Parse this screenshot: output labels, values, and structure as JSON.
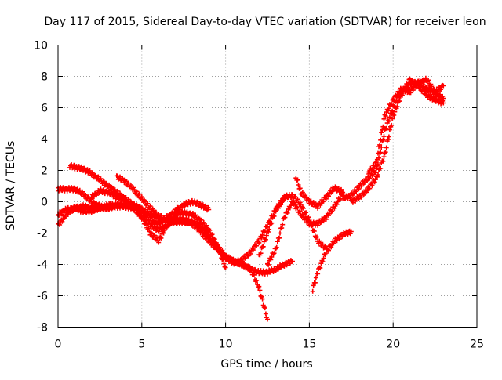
{
  "chart_data": {
    "type": "scatter",
    "title": "Day 117 of 2015, Sidereal Day-to-day VTEC variation (SDTVAR) for receiver leon",
    "xlabel": "GPS time / hours",
    "ylabel": "SDTVAR / TECUs",
    "xlim": [
      0,
      25
    ],
    "ylim": [
      -8,
      10
    ],
    "xticks": [
      "0",
      "5",
      "10",
      "15",
      "20",
      "25"
    ],
    "yticks": [
      "-8",
      "-6",
      "-4",
      "-2",
      "0",
      "2",
      "4",
      "6",
      "8",
      "10"
    ],
    "grid": true,
    "marker": "+",
    "color": "#ff0000",
    "series": [
      {
        "x": [
          0.0,
          0.5,
          1.0,
          1.5,
          2.0,
          2.5,
          3.0,
          3.5,
          4.0,
          4.5,
          5.0,
          5.5,
          6.0,
          6.5,
          7.0,
          7.5,
          8.0,
          8.5,
          9.0,
          9.5,
          10.0,
          10.5,
          11.0,
          11.5,
          12.0,
          12.5
        ],
        "y": [
          -1.5,
          -0.8,
          -0.4,
          -0.3,
          -0.4,
          -0.4,
          -0.4,
          -0.3,
          -0.3,
          -0.4,
          -0.9,
          -1.5,
          -1.8,
          -1.5,
          -1.2,
          -1.2,
          -1.4,
          -1.9,
          -2.5,
          -3.0,
          -3.5,
          -3.8,
          -4.0,
          -4.3,
          -5.5,
          -7.5
        ]
      },
      {
        "x": [
          0.0,
          0.5,
          1.0,
          1.5,
          2.0,
          2.5,
          3.0,
          3.5,
          4.0,
          4.5,
          5.0,
          5.5,
          6.0,
          6.5,
          7.0,
          7.5,
          8.0,
          8.5,
          9.0,
          9.5,
          10.0
        ],
        "y": [
          0.8,
          0.8,
          0.8,
          0.5,
          0.0,
          -0.3,
          -0.4,
          -0.2,
          -0.2,
          -0.4,
          -1.0,
          -2.0,
          -2.5,
          -1.5,
          -0.8,
          -0.7,
          -0.8,
          -1.2,
          -1.8,
          -2.8,
          -4.2
        ]
      },
      {
        "x": [
          0.0,
          0.5,
          1.0,
          1.5,
          2.0,
          2.5,
          3.0,
          3.5,
          4.0,
          4.5,
          5.0
        ],
        "y": [
          -0.8,
          -0.5,
          -0.4,
          -0.6,
          -0.6,
          -0.4,
          -0.2,
          -0.2,
          -0.2,
          -0.3,
          -0.4
        ]
      },
      {
        "x": [
          0.7,
          1.0,
          1.5,
          2.0,
          2.5,
          3.0,
          3.5,
          4.0,
          4.5,
          5.0,
          5.5,
          6.0,
          6.5,
          7.0,
          7.5,
          8.0,
          8.5,
          9.0,
          9.5,
          10.0,
          10.5,
          11.0,
          11.5,
          12.0,
          12.5,
          13.0,
          13.5,
          14.0
        ],
        "y": [
          2.3,
          2.2,
          2.1,
          1.8,
          1.4,
          1.0,
          0.6,
          0.2,
          -0.2,
          -0.5,
          -0.8,
          -1.0,
          -1.2,
          -1.3,
          -1.3,
          -1.3,
          -1.5,
          -2.0,
          -2.8,
          -3.5,
          -3.8,
          -4.0,
          -4.3,
          -4.5,
          -4.5,
          -4.3,
          -4.0,
          -3.8
        ]
      },
      {
        "x": [
          2.0,
          2.5,
          3.0,
          3.5,
          4.0,
          4.5,
          5.0,
          5.5,
          6.0,
          6.5,
          7.0,
          7.5,
          8.0,
          8.5,
          9.0
        ],
        "y": [
          0.3,
          0.7,
          0.6,
          0.3,
          0.0,
          -0.2,
          -0.6,
          -1.2,
          -1.4,
          -1.0,
          -0.6,
          -0.2,
          0.0,
          -0.2,
          -0.5
        ]
      },
      {
        "x": [
          3.5,
          4.0,
          4.5,
          5.0,
          5.5,
          6.0,
          6.5,
          7.0,
          7.5,
          8.0,
          8.5,
          9.0,
          9.5,
          10.0,
          10.5,
          11.0,
          11.5,
          12.0,
          12.5,
          13.0,
          13.5
        ],
        "y": [
          1.6,
          1.3,
          0.8,
          0.2,
          -0.4,
          -0.9,
          -1.2,
          -1.2,
          -1.1,
          -1.3,
          -1.7,
          -2.3,
          -3.0,
          -3.6,
          -3.9,
          -3.7,
          -3.2,
          -2.5,
          -1.5,
          -0.5,
          0.2
        ]
      },
      {
        "x": [
          12.0,
          12.5,
          13.0,
          13.5,
          14.0,
          14.5,
          15.0,
          15.5,
          16.0
        ],
        "y": [
          -3.5,
          -2.0,
          -0.5,
          0.3,
          0.4,
          -0.2,
          -1.2,
          -2.5,
          -3.0
        ]
      },
      {
        "x": [
          12.5,
          13.0,
          13.5,
          14.0,
          14.5,
          15.0,
          15.5,
          16.0,
          16.5,
          17.0
        ],
        "y": [
          -4.0,
          -3.0,
          -1.0,
          0.0,
          -0.8,
          -1.4,
          -1.4,
          -1.0,
          -0.3,
          0.5
        ]
      },
      {
        "x": [
          14.2,
          14.5,
          15.0,
          15.5,
          16.0,
          16.5,
          17.0
        ],
        "y": [
          1.6,
          0.6,
          0.0,
          -0.3,
          0.3,
          0.9,
          0.6
        ]
      },
      {
        "x": [
          15.2,
          15.5,
          16.0,
          16.5,
          17.0,
          17.5
        ],
        "y": [
          -5.6,
          -4.5,
          -3.2,
          -2.5,
          -2.1,
          -1.9
        ]
      },
      {
        "x": [
          17.0,
          17.5,
          18.0,
          18.5,
          19.0,
          19.5,
          20.0,
          20.5,
          21.0,
          21.5,
          22.0,
          22.5,
          23.0
        ],
        "y": [
          0.2,
          0.4,
          1.0,
          1.5,
          2.0,
          4.5,
          6.0,
          7.0,
          7.5,
          7.6,
          7.2,
          6.9,
          6.6
        ]
      },
      {
        "x": [
          17.5,
          18.0,
          18.5,
          19.0,
          19.5,
          20.0,
          20.5,
          21.0,
          21.5,
          22.0,
          22.5,
          23.0
        ],
        "y": [
          0.0,
          0.3,
          0.8,
          1.5,
          3.0,
          5.5,
          6.8,
          7.8,
          7.4,
          6.8,
          6.5,
          6.3
        ]
      },
      {
        "x": [
          18.5,
          19.0,
          19.5,
          20.0,
          20.5,
          21.0,
          21.5,
          22.0,
          22.5,
          23.0
        ],
        "y": [
          1.8,
          2.5,
          5.5,
          6.5,
          7.2,
          7.0,
          7.6,
          7.8,
          7.0,
          7.4
        ]
      }
    ]
  }
}
